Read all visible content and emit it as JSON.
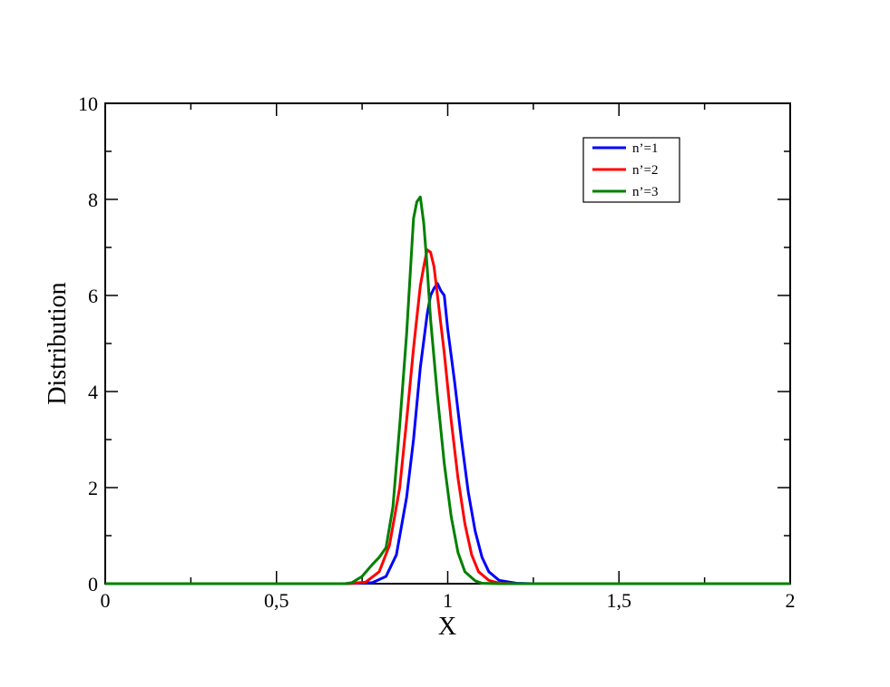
{
  "chart_data": {
    "type": "line",
    "xlabel": "X",
    "ylabel": "Distribution",
    "xlim": [
      0,
      2
    ],
    "ylim": [
      0,
      10
    ],
    "x_ticks": [
      "0",
      "0,5",
      "1",
      "1,5",
      "2"
    ],
    "y_ticks": [
      "0",
      "2",
      "4",
      "6",
      "8",
      "10"
    ],
    "grid": false,
    "legend_position": "top-right",
    "series": [
      {
        "name": "n’=1",
        "color": "#0000ff",
        "points": [
          [
            0,
            0
          ],
          [
            0.7,
            0
          ],
          [
            0.78,
            0.02
          ],
          [
            0.82,
            0.15
          ],
          [
            0.85,
            0.6
          ],
          [
            0.88,
            1.8
          ],
          [
            0.9,
            3.0
          ],
          [
            0.92,
            4.5
          ],
          [
            0.94,
            5.6
          ],
          [
            0.95,
            6.0
          ],
          [
            0.96,
            6.15
          ],
          [
            0.97,
            6.25
          ],
          [
            0.98,
            6.1
          ],
          [
            0.99,
            6.0
          ],
          [
            1.0,
            5.3
          ],
          [
            1.02,
            4.2
          ],
          [
            1.04,
            3.0
          ],
          [
            1.06,
            1.9
          ],
          [
            1.08,
            1.1
          ],
          [
            1.1,
            0.55
          ],
          [
            1.12,
            0.25
          ],
          [
            1.15,
            0.07
          ],
          [
            1.2,
            0.01
          ],
          [
            1.25,
            0
          ],
          [
            2,
            0
          ]
        ]
      },
      {
        "name": "n’=2",
        "color": "#ff0000",
        "points": [
          [
            0,
            0
          ],
          [
            0.7,
            0
          ],
          [
            0.76,
            0.03
          ],
          [
            0.8,
            0.25
          ],
          [
            0.83,
            0.8
          ],
          [
            0.86,
            2.0
          ],
          [
            0.88,
            3.4
          ],
          [
            0.9,
            4.9
          ],
          [
            0.92,
            6.2
          ],
          [
            0.93,
            6.6
          ],
          [
            0.94,
            6.95
          ],
          [
            0.95,
            6.9
          ],
          [
            0.96,
            6.6
          ],
          [
            0.97,
            6.0
          ],
          [
            0.99,
            4.8
          ],
          [
            1.01,
            3.4
          ],
          [
            1.03,
            2.2
          ],
          [
            1.05,
            1.25
          ],
          [
            1.07,
            0.6
          ],
          [
            1.09,
            0.25
          ],
          [
            1.12,
            0.07
          ],
          [
            1.15,
            0.01
          ],
          [
            1.2,
            0
          ],
          [
            2,
            0
          ]
        ]
      },
      {
        "name": "n’=3",
        "color": "#008000",
        "points": [
          [
            0,
            0
          ],
          [
            0.7,
            0
          ],
          [
            0.72,
            0.02
          ],
          [
            0.75,
            0.15
          ],
          [
            0.78,
            0.4
          ],
          [
            0.8,
            0.55
          ],
          [
            0.82,
            0.75
          ],
          [
            0.84,
            1.6
          ],
          [
            0.86,
            3.3
          ],
          [
            0.88,
            5.2
          ],
          [
            0.89,
            6.4
          ],
          [
            0.9,
            7.6
          ],
          [
            0.91,
            7.95
          ],
          [
            0.92,
            8.05
          ],
          [
            0.93,
            7.5
          ],
          [
            0.94,
            6.6
          ],
          [
            0.95,
            5.5
          ],
          [
            0.97,
            3.9
          ],
          [
            0.99,
            2.5
          ],
          [
            1.01,
            1.4
          ],
          [
            1.03,
            0.65
          ],
          [
            1.05,
            0.25
          ],
          [
            1.08,
            0.06
          ],
          [
            1.1,
            0.01
          ],
          [
            1.15,
            0
          ],
          [
            2,
            0
          ]
        ]
      }
    ]
  }
}
